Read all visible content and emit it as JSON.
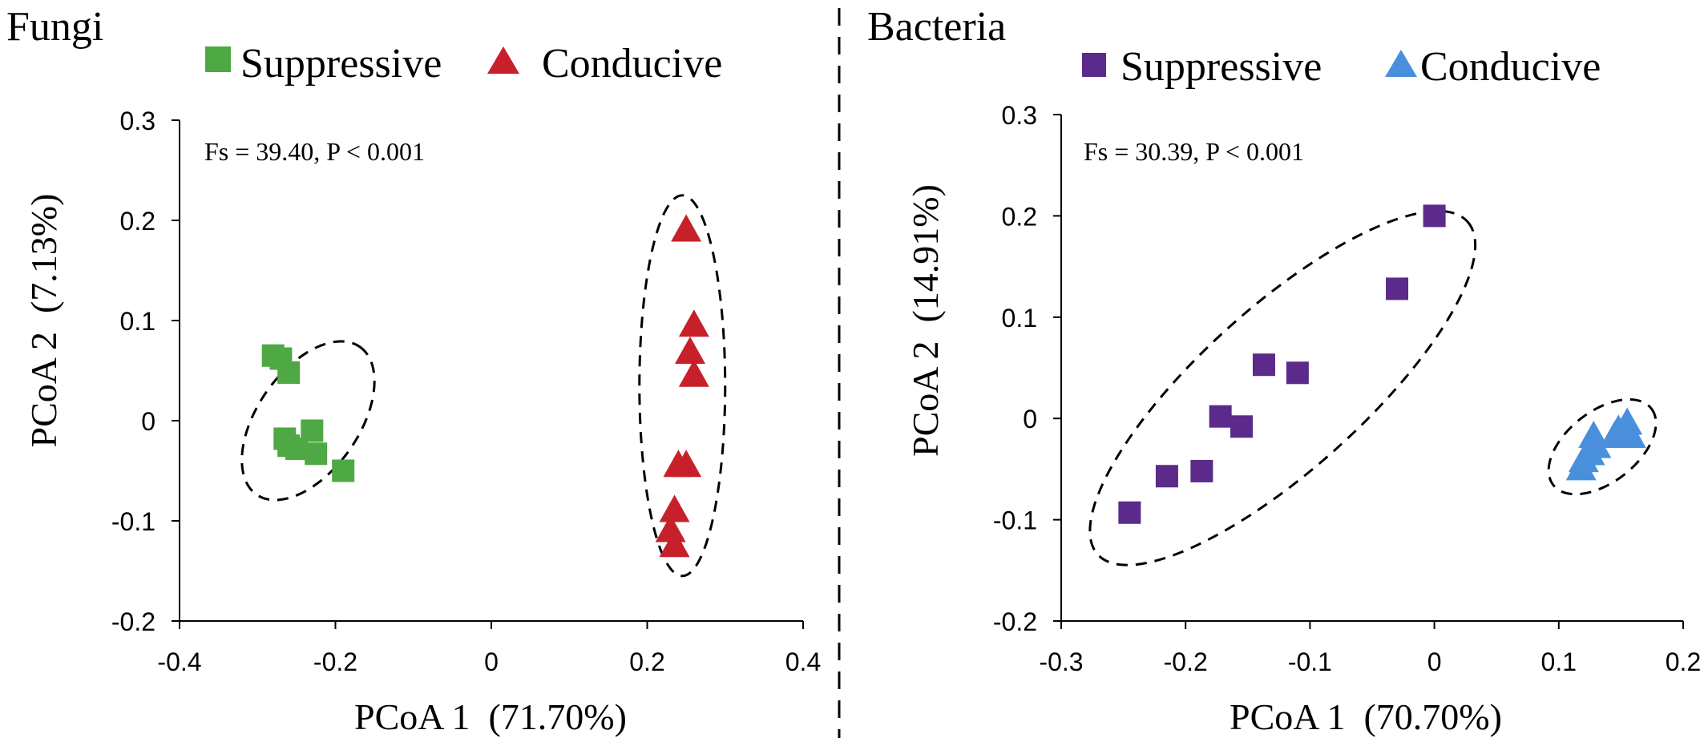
{
  "chart_data": [
    {
      "type": "scatter",
      "title": "Fungi",
      "annotation": "Fs = 39.40, P < 0.001",
      "xlabel": "PCoA 1  (71.70%)",
      "ylabel": "PCoA 2  (7.13%)",
      "xlim": [
        -0.4,
        0.4
      ],
      "ylim": [
        -0.2,
        0.3
      ],
      "xticks": [
        -0.4,
        -0.2,
        0,
        0.2,
        0.4
      ],
      "xtick_labels": [
        "-0.4",
        "-0.2",
        "0",
        "0.2",
        "0.4"
      ],
      "yticks": [
        -0.2,
        -0.1,
        0,
        0.1,
        0.2,
        0.3
      ],
      "ytick_labels": [
        "-0.2",
        "-0.1",
        "0",
        "0.1",
        "0.2",
        "0.3"
      ],
      "grid": false,
      "legend_position": "top",
      "series": [
        {
          "name": "Suppressive",
          "marker": "square",
          "color": "#4ea843",
          "points": [
            [
              -0.28,
              0.065
            ],
            [
              -0.27,
              0.062
            ],
            [
              -0.26,
              0.048
            ],
            [
              -0.265,
              -0.018
            ],
            [
              -0.26,
              -0.025
            ],
            [
              -0.25,
              -0.028
            ],
            [
              -0.23,
              -0.01
            ],
            [
              -0.225,
              -0.033
            ],
            [
              -0.19,
              -0.05
            ]
          ]
        },
        {
          "name": "Conducive",
          "marker": "triangle",
          "color": "#c8202a",
          "points": [
            [
              0.25,
              0.19
            ],
            [
              0.26,
              0.095
            ],
            [
              0.255,
              0.068
            ],
            [
              0.26,
              0.045
            ],
            [
              0.24,
              -0.045
            ],
            [
              0.25,
              -0.045
            ],
            [
              0.235,
              -0.09
            ],
            [
              0.23,
              -0.11
            ],
            [
              0.235,
              -0.125
            ]
          ]
        }
      ],
      "ellipses": [
        {
          "center": [
            -0.235,
            0.0
          ],
          "semi_axes": [
            0.065,
            0.09
          ],
          "angle_deg": 55
        },
        {
          "center": [
            0.245,
            0.035
          ],
          "semi_axes": [
            0.055,
            0.19
          ],
          "angle_deg": 90
        }
      ]
    },
    {
      "type": "scatter",
      "title": "Bacteria",
      "annotation": "Fs = 30.39, P < 0.001",
      "xlabel": "PCoA 1  (70.70%)",
      "ylabel": "PCoA 2  (14.91%)",
      "xlim": [
        -0.3,
        0.2
      ],
      "ylim": [
        -0.2,
        0.3
      ],
      "xticks": [
        -0.3,
        -0.2,
        -0.1,
        0,
        0.1,
        0.2
      ],
      "xtick_labels": [
        "-0.3",
        "-0.2",
        "-0.1",
        "0",
        "0.1",
        "0.2"
      ],
      "yticks": [
        -0.2,
        -0.1,
        0,
        0.1,
        0.2,
        0.3
      ],
      "ytick_labels": [
        "-0.2",
        "-0.1",
        "0",
        "0.1",
        "0.2",
        "0.3"
      ],
      "grid": false,
      "legend_position": "top",
      "series": [
        {
          "name": "Suppressive",
          "marker": "square",
          "color": "#5b2a8a",
          "points": [
            [
              0.0,
              0.2
            ],
            [
              -0.03,
              0.128
            ],
            [
              -0.137,
              0.053
            ],
            [
              -0.11,
              0.045
            ],
            [
              -0.172,
              0.002
            ],
            [
              -0.155,
              -0.008
            ],
            [
              -0.187,
              -0.052
            ],
            [
              -0.215,
              -0.057
            ],
            [
              -0.245,
              -0.093
            ]
          ]
        },
        {
          "name": "Conducive",
          "marker": "triangle",
          "color": "#4a8fdc",
          "points": [
            [
              0.155,
              -0.005
            ],
            [
              0.148,
              -0.012
            ],
            [
              0.158,
              -0.018
            ],
            [
              0.145,
              -0.018
            ],
            [
              0.128,
              -0.018
            ],
            [
              0.13,
              -0.028
            ],
            [
              0.125,
              -0.035
            ],
            [
              0.12,
              -0.042
            ],
            [
              0.118,
              -0.05
            ]
          ]
        }
      ],
      "ellipses": [
        {
          "center": [
            -0.122,
            0.03
          ],
          "semi_axes": [
            0.2,
            0.08
          ],
          "angle_deg": 42
        },
        {
          "center": [
            0.135,
            -0.028
          ],
          "semi_axes": [
            0.05,
            0.035
          ],
          "angle_deg": 38
        }
      ]
    }
  ]
}
